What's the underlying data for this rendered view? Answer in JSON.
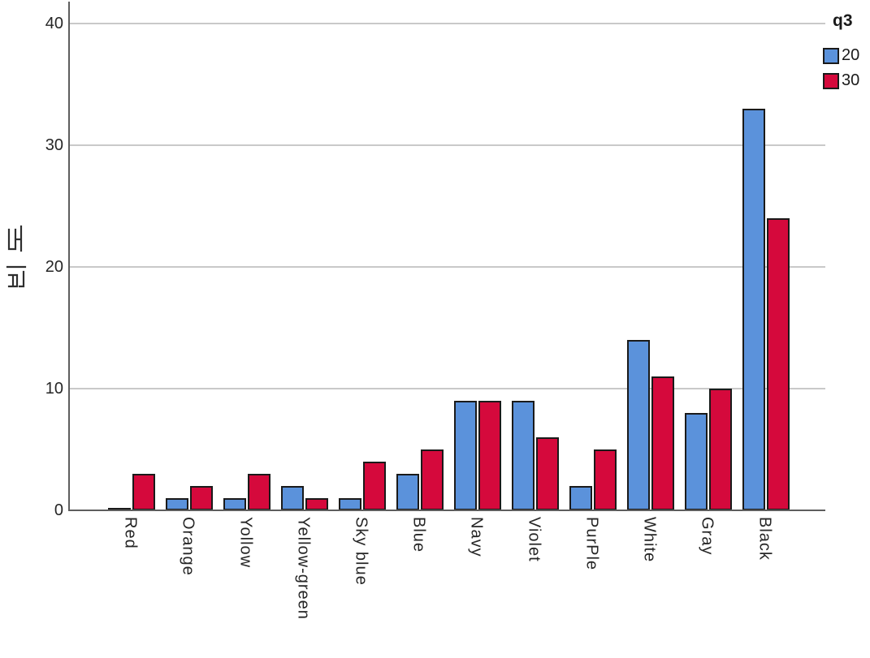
{
  "chart_data": {
    "type": "bar",
    "title": "",
    "categories": [
      "Red",
      "Orange",
      "Yollow",
      "Yellow-green",
      "Sky blue",
      "Blue",
      "Navy",
      "Violet",
      "PurPle",
      "White",
      "Gray",
      "Black"
    ],
    "series": [
      {
        "name": "20",
        "color": "#5B92DB",
        "values": [
          0,
          1,
          1,
          2,
          1,
          3,
          9,
          9,
          2,
          14,
          8,
          33
        ]
      },
      {
        "name": "30",
        "color": "#D5093C",
        "values": [
          3,
          2,
          3,
          1,
          4,
          5,
          9,
          6,
          5,
          11,
          10,
          24
        ]
      }
    ],
    "xlabel": "",
    "ylabel": "빈도",
    "y_ticks": [
      0,
      10,
      20,
      30,
      40
    ],
    "ylim": [
      0,
      41.6
    ],
    "grid": "horizontal",
    "legend": {
      "title": "q3",
      "position": "top-right",
      "entries": [
        {
          "label": "20",
          "color": "#5B92DB"
        },
        {
          "label": "30",
          "color": "#D5093C"
        }
      ]
    },
    "colors": {
      "bar_border": "#1A1A1A",
      "axis_line": "#5E5E5E",
      "gridline": "#C9C9C9",
      "text": "#262626",
      "background": "#FFFFFF"
    }
  }
}
